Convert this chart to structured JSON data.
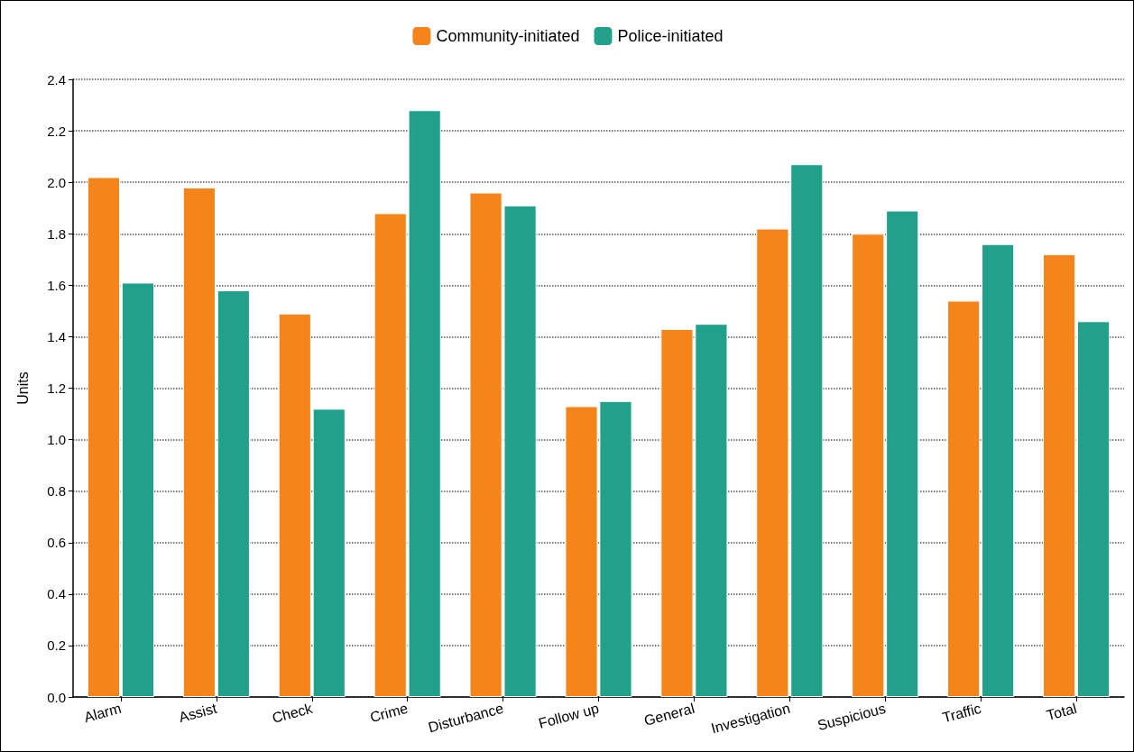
{
  "chart_data": {
    "type": "bar",
    "ylabel": "Units",
    "categories": [
      "Alarm",
      "Assist",
      "Check",
      "Crime",
      "Disturbance",
      "Follow up",
      "General",
      "Investigation",
      "Suspicious",
      "Traffic",
      "Total"
    ],
    "series": [
      {
        "name": "Community-initiated",
        "color": "#f5841a",
        "values": [
          2.02,
          1.98,
          1.49,
          1.88,
          1.96,
          1.13,
          1.43,
          1.82,
          1.8,
          1.54,
          1.72
        ]
      },
      {
        "name": "Police-initiated",
        "color": "#21a08a",
        "values": [
          1.61,
          1.58,
          1.12,
          2.28,
          1.91,
          1.15,
          1.45,
          2.07,
          1.89,
          1.76,
          1.46
        ]
      }
    ],
    "ylim": [
      0,
      2.4
    ],
    "yticks": [
      {
        "value": 0,
        "label": "0.0"
      },
      0.2,
      0.4,
      0.6,
      0.8,
      {
        "value": 1,
        "label": "1.0"
      },
      1.2,
      1.4,
      1.6,
      1.8,
      {
        "value": 2,
        "label": "2.0"
      },
      2.2,
      2.4
    ],
    "grid": "y",
    "legend": "top"
  }
}
